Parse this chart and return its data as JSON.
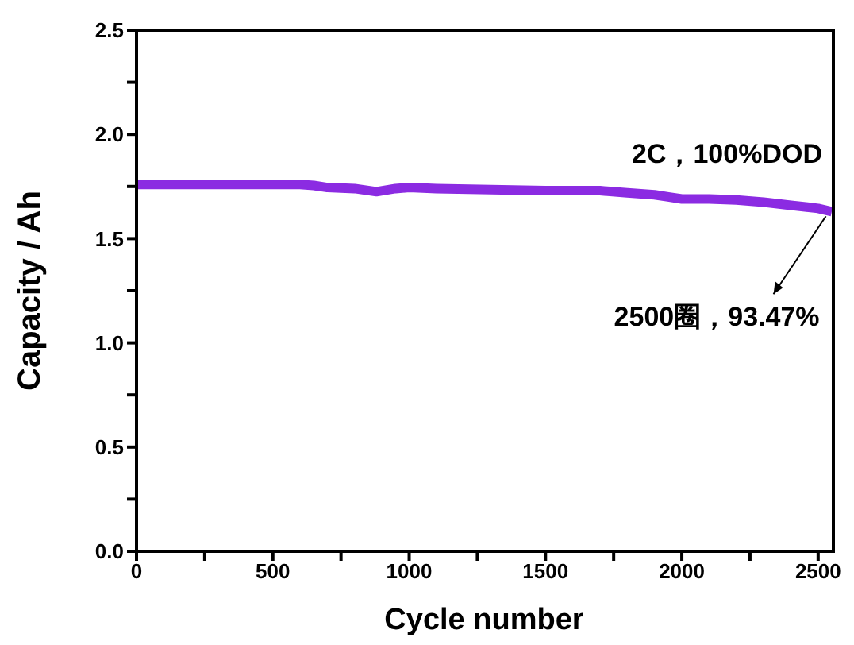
{
  "chart_data": {
    "type": "line",
    "xlabel": "Cycle number",
    "ylabel": "Capacity / Ah",
    "x": [
      0,
      300,
      600,
      650,
      700,
      800,
      880,
      950,
      1000,
      1100,
      1300,
      1500,
      1700,
      1800,
      1900,
      1950,
      2000,
      2100,
      2200,
      2300,
      2400,
      2500,
      2550
    ],
    "series": [
      {
        "color": "#8b2be2",
        "values": [
          1.76,
          1.76,
          1.76,
          1.755,
          1.745,
          1.74,
          1.725,
          1.74,
          1.745,
          1.74,
          1.735,
          1.73,
          1.73,
          1.72,
          1.71,
          1.7,
          1.69,
          1.69,
          1.685,
          1.675,
          1.66,
          1.645,
          1.63
        ]
      }
    ],
    "xlim": [
      0,
      2550
    ],
    "ylim": [
      0,
      2.5
    ],
    "xticks": [
      0,
      {
        "value": 250,
        "label": null
      },
      500,
      {
        "value": 750,
        "label": null
      },
      1000,
      {
        "value": 1250,
        "label": null
      },
      1500,
      {
        "value": 1750,
        "label": null
      },
      2000,
      {
        "value": 2250,
        "label": null
      },
      2500
    ],
    "yticks": [
      {
        "value": 0,
        "label": "0.0"
      },
      {
        "value": 0.25,
        "label": null
      },
      0.5,
      {
        "value": 0.75,
        "label": null
      },
      {
        "value": 1,
        "label": "1.0"
      },
      {
        "value": 1.25,
        "label": null
      },
      1.5,
      {
        "value": 1.75,
        "label": null
      },
      {
        "value": 2,
        "label": "2.0"
      },
      {
        "value": 2.25,
        "label": null
      },
      2.5
    ],
    "annotations": [
      "2C，100%DOD",
      {
        "text": "2500圈，93.47%",
        "x": 2540,
        "y": 1.63
      }
    ],
    "grid": false,
    "legend": false,
    "marker": "none",
    "line_style": "solid"
  }
}
